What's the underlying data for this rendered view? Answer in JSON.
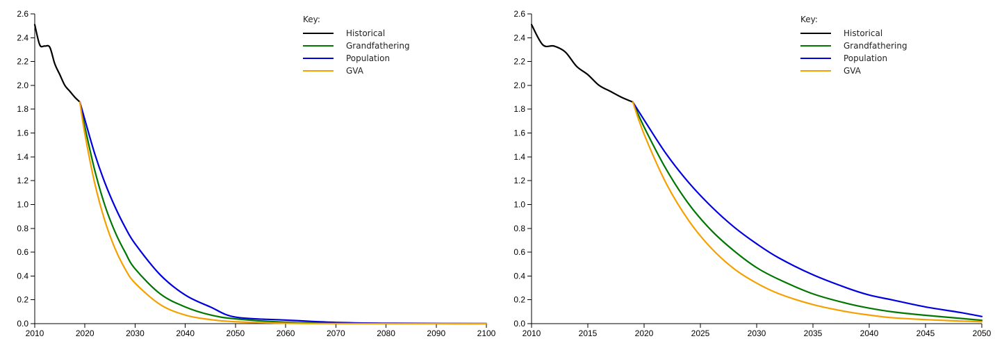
{
  "chart_data": [
    {
      "type": "line",
      "xlim": [
        2010,
        2100
      ],
      "ylim": [
        0,
        2.6
      ],
      "x_ticks": [
        2010,
        2020,
        2030,
        2040,
        2050,
        2060,
        2070,
        2080,
        2090,
        2100
      ],
      "y_ticks": [
        0.0,
        0.2,
        0.4,
        0.6,
        0.8,
        1.0,
        1.2,
        1.4,
        1.6,
        1.8,
        2.0,
        2.2,
        2.4,
        2.6
      ],
      "y_tick_labels": [
        "0.0",
        "0.2",
        "0.4",
        "0.6",
        "0.8",
        "1.0",
        "1.2",
        "1.4",
        "1.6",
        "1.8",
        "2.0",
        "2.2",
        "2.4",
        "2.6"
      ],
      "legend": {
        "title": "Key:",
        "placement": "top-right"
      },
      "series": [
        {
          "name": "Historical",
          "color": "#000000",
          "x": [
            2010,
            2011,
            2012,
            2013,
            2014,
            2015,
            2016,
            2017,
            2018,
            2019
          ],
          "y": [
            2.51,
            2.34,
            2.33,
            2.32,
            2.18,
            2.09,
            2.0,
            1.95,
            1.9,
            1.86
          ]
        },
        {
          "name": "Grandfathering",
          "color": "#007700",
          "x": [
            2019,
            2020,
            2022,
            2024,
            2026,
            2028,
            2030,
            2035,
            2040,
            2045,
            2050,
            2060,
            2070,
            2080,
            2090,
            2100
          ],
          "y": [
            1.86,
            1.65,
            1.28,
            0.99,
            0.77,
            0.6,
            0.46,
            0.25,
            0.14,
            0.073,
            0.04,
            0.012,
            0.0035,
            0.001,
            0.0003,
            0.0001
          ]
        },
        {
          "name": "Population",
          "color": "#0000dd",
          "x": [
            2019,
            2020,
            2022,
            2024,
            2026,
            2028,
            2030,
            2035,
            2040,
            2045,
            2050,
            2060,
            2070,
            2080,
            2090,
            2100
          ],
          "y": [
            1.86,
            1.71,
            1.42,
            1.18,
            0.98,
            0.81,
            0.67,
            0.41,
            0.24,
            0.14,
            0.055,
            0.03,
            0.01,
            0.004,
            0.002,
            0.001
          ]
        },
        {
          "name": "GVA",
          "color": "#f5a000",
          "x": [
            2019,
            2020,
            2022,
            2024,
            2026,
            2028,
            2030,
            2035,
            2040,
            2045,
            2050,
            2060,
            2070,
            2080,
            2090,
            2100
          ],
          "y": [
            1.86,
            1.59,
            1.17,
            0.86,
            0.63,
            0.46,
            0.34,
            0.16,
            0.072,
            0.034,
            0.016,
            0.0035,
            0.0008,
            0.0002,
            0.0001,
            0.0
          ]
        }
      ]
    },
    {
      "type": "line",
      "xlim": [
        2010,
        2050
      ],
      "ylim": [
        0,
        2.6
      ],
      "x_ticks": [
        2010,
        2015,
        2020,
        2025,
        2030,
        2035,
        2040,
        2045,
        2050
      ],
      "y_ticks": [
        0.0,
        0.2,
        0.4,
        0.6,
        0.8,
        1.0,
        1.2,
        1.4,
        1.6,
        1.8,
        2.0,
        2.2,
        2.4,
        2.6
      ],
      "y_tick_labels": [
        "0.0",
        "0.2",
        "0.4",
        "0.6",
        "0.8",
        "1.0",
        "1.2",
        "1.4",
        "1.6",
        "1.8",
        "2.0",
        "2.2",
        "2.4",
        "2.6"
      ],
      "legend": {
        "title": "Key:",
        "placement": "top-right"
      },
      "series": [
        {
          "name": "Historical",
          "color": "#000000",
          "x": [
            2010,
            2011,
            2012,
            2013,
            2014,
            2015,
            2016,
            2017,
            2018,
            2019
          ],
          "y": [
            2.51,
            2.34,
            2.33,
            2.28,
            2.16,
            2.09,
            2.0,
            1.95,
            1.9,
            1.86
          ]
        },
        {
          "name": "Grandfathering",
          "color": "#007700",
          "x": [
            2019,
            2020,
            2022,
            2024,
            2026,
            2028,
            2030,
            2032,
            2035,
            2038,
            2040,
            2042,
            2045,
            2048,
            2050
          ],
          "y": [
            1.86,
            1.65,
            1.29,
            1.0,
            0.78,
            0.61,
            0.47,
            0.37,
            0.25,
            0.17,
            0.13,
            0.1,
            0.07,
            0.045,
            0.028
          ]
        },
        {
          "name": "Population",
          "color": "#0000dd",
          "x": [
            2019,
            2020,
            2022,
            2024,
            2026,
            2028,
            2030,
            2032,
            2035,
            2038,
            2040,
            2042,
            2045,
            2048,
            2050
          ],
          "y": [
            1.86,
            1.71,
            1.42,
            1.18,
            0.98,
            0.81,
            0.67,
            0.55,
            0.41,
            0.3,
            0.24,
            0.2,
            0.14,
            0.095,
            0.06
          ]
        },
        {
          "name": "GVA",
          "color": "#f5a000",
          "x": [
            2019,
            2020,
            2022,
            2024,
            2026,
            2028,
            2030,
            2032,
            2035,
            2038,
            2040,
            2042,
            2045,
            2048,
            2050
          ],
          "y": [
            1.86,
            1.59,
            1.17,
            0.86,
            0.63,
            0.46,
            0.34,
            0.25,
            0.16,
            0.1,
            0.072,
            0.05,
            0.034,
            0.022,
            0.016
          ]
        }
      ]
    }
  ]
}
